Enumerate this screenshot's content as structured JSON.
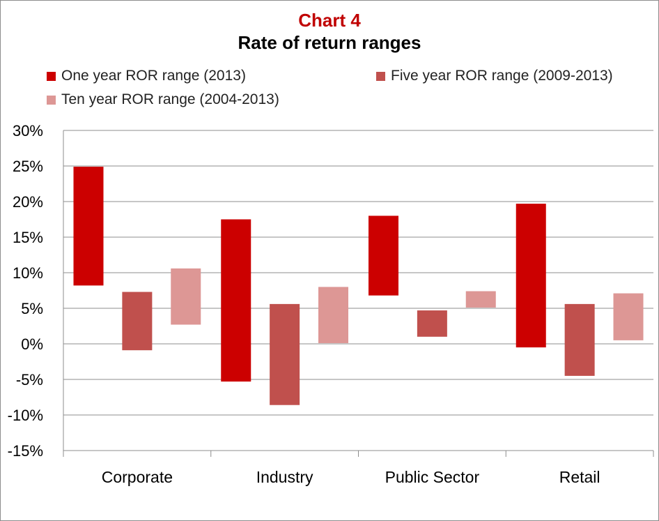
{
  "title": "Chart 4",
  "subtitle": "Rate of return ranges",
  "colors": {
    "one_year": "#cc0000",
    "five_year": "#c0504d",
    "ten_year": "#dd9795",
    "title_accent": "#c00000",
    "grid": "#8c8c8c"
  },
  "chart_data": {
    "type": "bar",
    "subtype": "floating-range",
    "title": "Chart 4",
    "subtitle": "Rate of return ranges",
    "xlabel": "",
    "ylabel": "",
    "categories": [
      "Corporate",
      "Industry",
      "Public Sector",
      "Retail"
    ],
    "ylim": [
      -0.15,
      0.3
    ],
    "yticks": [
      -0.15,
      -0.1,
      -0.05,
      0,
      0.05,
      0.1,
      0.15,
      0.2,
      0.25,
      0.3
    ],
    "ytick_labels": [
      "-15%",
      "-10%",
      "-5%",
      "0%",
      "5%",
      "10%",
      "15%",
      "20%",
      "25%",
      "30%"
    ],
    "grid": "horizontal",
    "legend_position": "top",
    "series": [
      {
        "name": "One year ROR range (2013)",
        "color": "#cc0000",
        "low": [
          0.082,
          -0.053,
          0.068,
          -0.005
        ],
        "high": [
          0.249,
          0.175,
          0.18,
          0.197
        ]
      },
      {
        "name": "Five year ROR range (2009-2013)",
        "color": "#c0504d",
        "low": [
          -0.009,
          -0.086,
          0.01,
          -0.045
        ],
        "high": [
          0.073,
          0.056,
          0.047,
          0.056
        ]
      },
      {
        "name": "Ten year ROR range (2004-2013)",
        "color": "#dd9795",
        "low": [
          0.027,
          0.001,
          0.051,
          0.005
        ],
        "high": [
          0.106,
          0.08,
          0.074,
          0.071
        ]
      }
    ]
  }
}
